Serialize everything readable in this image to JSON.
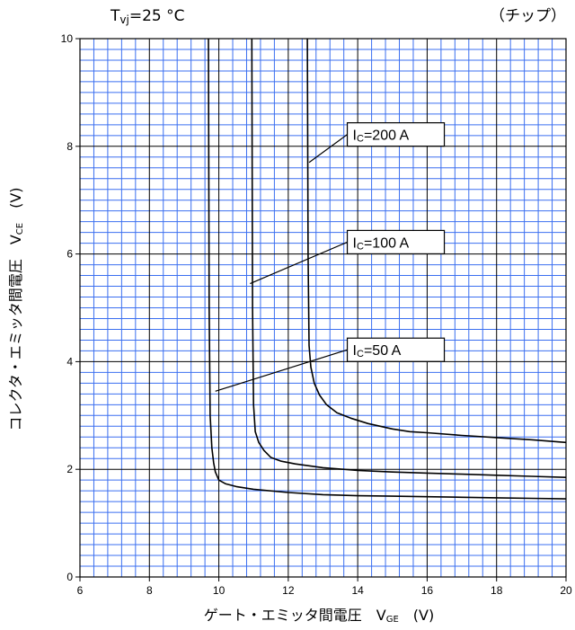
{
  "chart_data": {
    "type": "line",
    "condition": {
      "main": "T",
      "sub": "vj",
      "tail": "=25 °C"
    },
    "note": "（チップ）",
    "xlabel": {
      "main": "ゲート・エミッタ間電圧　V",
      "sub": "GE",
      "unit": "　(V)"
    },
    "ylabel": {
      "main": "コレクタ・エミッタ間電圧　V",
      "sub": "CE",
      "unit": "　(V)"
    },
    "xlim": [
      6,
      20
    ],
    "ylim": [
      0,
      10
    ],
    "xticks": [
      6,
      8,
      10,
      12,
      14,
      16,
      18,
      20
    ],
    "yticks": [
      0,
      2,
      4,
      6,
      8,
      10
    ],
    "grid": {
      "major": true,
      "minor": true,
      "minor_color": "#3b6ff0",
      "major_color": "#000000"
    },
    "series": [
      {
        "name": "IC=50 A",
        "label": {
          "main": "I",
          "sub": "C",
          "tail": "=50 A"
        },
        "color": "#000000",
        "x": [
          9.7,
          9.72,
          9.75,
          9.8,
          9.85,
          9.9,
          10.0,
          10.2,
          10.5,
          11.0,
          12.0,
          13.0,
          14.0,
          15.0,
          16.0,
          17.0,
          18.0,
          19.0,
          20.0
        ],
        "y": [
          10.0,
          5.0,
          3.0,
          2.4,
          2.12,
          1.95,
          1.8,
          1.73,
          1.68,
          1.63,
          1.57,
          1.53,
          1.51,
          1.5,
          1.49,
          1.48,
          1.47,
          1.46,
          1.45
        ]
      },
      {
        "name": "IC=100 A",
        "label": {
          "main": "I",
          "sub": "C",
          "tail": "=100 A"
        },
        "color": "#000000",
        "x": [
          10.95,
          10.97,
          11.0,
          11.05,
          11.15,
          11.3,
          11.5,
          11.8,
          12.2,
          13.0,
          14.0,
          15.0,
          16.0,
          17.0,
          18.0,
          19.0,
          20.0
        ],
        "y": [
          10.0,
          5.0,
          3.2,
          2.7,
          2.5,
          2.35,
          2.22,
          2.15,
          2.1,
          2.03,
          1.98,
          1.95,
          1.93,
          1.91,
          1.89,
          1.87,
          1.85
        ]
      },
      {
        "name": "IC=200 A",
        "label": {
          "main": "I",
          "sub": "C",
          "tail": "=200 A"
        },
        "color": "#000000",
        "x": [
          12.55,
          12.57,
          12.6,
          12.65,
          12.75,
          12.9,
          13.1,
          13.4,
          13.8,
          14.3,
          15.0,
          15.5,
          16.0,
          17.0,
          18.0,
          19.0,
          20.0
        ],
        "y": [
          10.0,
          6.0,
          4.3,
          3.9,
          3.6,
          3.38,
          3.2,
          3.05,
          2.95,
          2.85,
          2.75,
          2.7,
          2.68,
          2.63,
          2.59,
          2.55,
          2.5
        ]
      }
    ],
    "annotations": [
      {
        "series": 0,
        "label_at": [
          13.7,
          4.22
        ],
        "leader_from": [
          9.9,
          3.45
        ],
        "leader_to": [
          13.7,
          4.22
        ]
      },
      {
        "series": 1,
        "label_at": [
          13.7,
          6.22
        ],
        "leader_from": [
          10.9,
          5.45
        ],
        "leader_to": [
          13.7,
          6.22
        ]
      },
      {
        "series": 2,
        "label_at": [
          13.7,
          8.22
        ],
        "leader_from": [
          12.6,
          7.7
        ],
        "leader_to": [
          13.7,
          8.22
        ]
      }
    ]
  }
}
